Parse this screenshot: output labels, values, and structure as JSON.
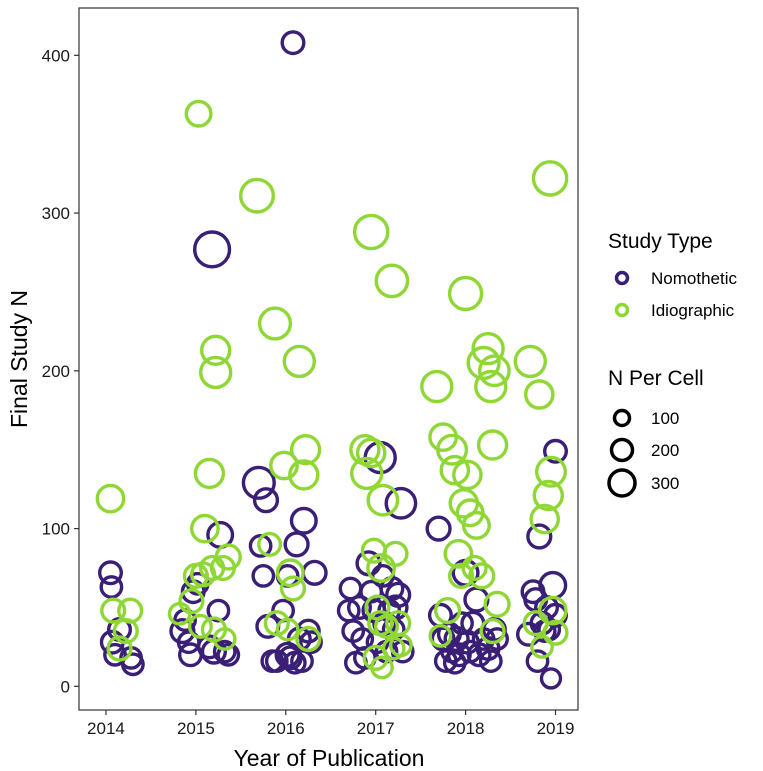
{
  "chart_data": {
    "type": "scatter",
    "title": "",
    "xlabel": "Year of Publication",
    "ylabel": "Final Study N",
    "xlim": [
      2013.7,
      2019.25
    ],
    "ylim": [
      -15,
      430
    ],
    "xticks": [
      2014,
      2015,
      2016,
      2017,
      2018,
      2019
    ],
    "yticks": [
      0,
      100,
      200,
      300,
      400
    ],
    "grid": false,
    "legend": {
      "position": "right",
      "color_title": "Study Type",
      "size_title": "N Per Cell",
      "size_labels": [
        "100",
        "200",
        "300"
      ],
      "size_values": [
        100,
        200,
        300
      ]
    },
    "series": [
      {
        "name": "Nomothetic",
        "color": "#3a1f76",
        "points": [
          {
            "x": 2014.05,
            "y": 72,
            "size": 50
          },
          {
            "x": 2014.06,
            "y": 63,
            "size": 40
          },
          {
            "x": 2014.07,
            "y": 28,
            "size": 50
          },
          {
            "x": 2014.1,
            "y": 20,
            "size": 40
          },
          {
            "x": 2014.15,
            "y": 36,
            "size": 50
          },
          {
            "x": 2014.28,
            "y": 18,
            "size": 40
          },
          {
            "x": 2014.3,
            "y": 14,
            "size": 40
          },
          {
            "x": 2014.85,
            "y": 35,
            "size": 60
          },
          {
            "x": 2014.88,
            "y": 42,
            "size": 40
          },
          {
            "x": 2014.92,
            "y": 28,
            "size": 40
          },
          {
            "x": 2014.94,
            "y": 20,
            "size": 50
          },
          {
            "x": 2014.97,
            "y": 60,
            "size": 50
          },
          {
            "x": 2015.02,
            "y": 65,
            "size": 40
          },
          {
            "x": 2015.15,
            "y": 25,
            "size": 50
          },
          {
            "x": 2015.18,
            "y": 277,
            "size": 230
          },
          {
            "x": 2015.2,
            "y": 22,
            "size": 60
          },
          {
            "x": 2015.25,
            "y": 48,
            "size": 40
          },
          {
            "x": 2015.27,
            "y": 96,
            "size": 80
          },
          {
            "x": 2015.32,
            "y": 22,
            "size": 40
          },
          {
            "x": 2015.36,
            "y": 20,
            "size": 40
          },
          {
            "x": 2015.7,
            "y": 129,
            "size": 160
          },
          {
            "x": 2015.72,
            "y": 89,
            "size": 40
          },
          {
            "x": 2015.75,
            "y": 70,
            "size": 40
          },
          {
            "x": 2015.78,
            "y": 118,
            "size": 60
          },
          {
            "x": 2015.8,
            "y": 38,
            "size": 50
          },
          {
            "x": 2015.85,
            "y": 16,
            "size": 40
          },
          {
            "x": 2015.9,
            "y": 16,
            "size": 40
          },
          {
            "x": 2015.97,
            "y": 48,
            "size": 40
          },
          {
            "x": 2016.02,
            "y": 70,
            "size": 40
          },
          {
            "x": 2016.05,
            "y": 18,
            "size": 50
          },
          {
            "x": 2016.08,
            "y": 408,
            "size": 50
          },
          {
            "x": 2016.12,
            "y": 90,
            "size": 60
          },
          {
            "x": 2016.15,
            "y": 30,
            "size": 50
          },
          {
            "x": 2016.18,
            "y": 16,
            "size": 40
          },
          {
            "x": 2016.2,
            "y": 105,
            "size": 80
          },
          {
            "x": 2016.25,
            "y": 35,
            "size": 50
          },
          {
            "x": 2016.28,
            "y": 28,
            "size": 40
          },
          {
            "x": 2016.32,
            "y": 72,
            "size": 60
          },
          {
            "x": 2016.02,
            "y": 20,
            "size": 60
          },
          {
            "x": 2016.1,
            "y": 15,
            "size": 40
          },
          {
            "x": 2016.7,
            "y": 48,
            "size": 40
          },
          {
            "x": 2016.72,
            "y": 62,
            "size": 40
          },
          {
            "x": 2016.75,
            "y": 35,
            "size": 40
          },
          {
            "x": 2016.78,
            "y": 15,
            "size": 40
          },
          {
            "x": 2016.82,
            "y": 50,
            "size": 50
          },
          {
            "x": 2016.85,
            "y": 30,
            "size": 40
          },
          {
            "x": 2016.88,
            "y": 18,
            "size": 40
          },
          {
            "x": 2016.92,
            "y": 78,
            "size": 60
          },
          {
            "x": 2016.95,
            "y": 60,
            "size": 40
          },
          {
            "x": 2016.98,
            "y": 48,
            "size": 50
          },
          {
            "x": 2017.02,
            "y": 28,
            "size": 40
          },
          {
            "x": 2017.05,
            "y": 145,
            "size": 150
          },
          {
            "x": 2017.08,
            "y": 70,
            "size": 40
          },
          {
            "x": 2017.1,
            "y": 40,
            "size": 50
          },
          {
            "x": 2017.12,
            "y": 22,
            "size": 40
          },
          {
            "x": 2017.15,
            "y": 48,
            "size": 40
          },
          {
            "x": 2017.18,
            "y": 62,
            "size": 50
          },
          {
            "x": 2017.2,
            "y": 36,
            "size": 40
          },
          {
            "x": 2017.22,
            "y": 50,
            "size": 60
          },
          {
            "x": 2017.25,
            "y": 58,
            "size": 60
          },
          {
            "x": 2017.28,
            "y": 116,
            "size": 140
          },
          {
            "x": 2017.3,
            "y": 22,
            "size": 40
          },
          {
            "x": 2017.7,
            "y": 100,
            "size": 60
          },
          {
            "x": 2017.72,
            "y": 45,
            "size": 50
          },
          {
            "x": 2017.75,
            "y": 30,
            "size": 50
          },
          {
            "x": 2017.78,
            "y": 16,
            "size": 40
          },
          {
            "x": 2017.82,
            "y": 33,
            "size": 50
          },
          {
            "x": 2017.85,
            "y": 22,
            "size": 40
          },
          {
            "x": 2017.88,
            "y": 15,
            "size": 40
          },
          {
            "x": 2017.9,
            "y": 30,
            "size": 60
          },
          {
            "x": 2017.93,
            "y": 20,
            "size": 50
          },
          {
            "x": 2017.96,
            "y": 40,
            "size": 40
          },
          {
            "x": 2018.0,
            "y": 72,
            "size": 80
          },
          {
            "x": 2018.02,
            "y": 28,
            "size": 50
          },
          {
            "x": 2018.05,
            "y": 22,
            "size": 40
          },
          {
            "x": 2018.08,
            "y": 40,
            "size": 50
          },
          {
            "x": 2018.12,
            "y": 55,
            "size": 60
          },
          {
            "x": 2018.15,
            "y": 20,
            "size": 50
          },
          {
            "x": 2018.2,
            "y": 30,
            "size": 40
          },
          {
            "x": 2018.25,
            "y": 24,
            "size": 50
          },
          {
            "x": 2018.28,
            "y": 16,
            "size": 40
          },
          {
            "x": 2018.32,
            "y": 36,
            "size": 50
          },
          {
            "x": 2018.35,
            "y": 30,
            "size": 40
          },
          {
            "x": 2018.7,
            "y": 33,
            "size": 50
          },
          {
            "x": 2018.75,
            "y": 60,
            "size": 50
          },
          {
            "x": 2018.78,
            "y": 55,
            "size": 50
          },
          {
            "x": 2018.8,
            "y": 16,
            "size": 40
          },
          {
            "x": 2018.82,
            "y": 95,
            "size": 60
          },
          {
            "x": 2018.85,
            "y": 40,
            "size": 50
          },
          {
            "x": 2018.88,
            "y": 35,
            "size": 40
          },
          {
            "x": 2018.9,
            "y": 50,
            "size": 50
          },
          {
            "x": 2018.93,
            "y": 36,
            "size": 40
          },
          {
            "x": 2018.95,
            "y": 5,
            "size": 30
          },
          {
            "x": 2018.97,
            "y": 64,
            "size": 90
          },
          {
            "x": 2019.0,
            "y": 149,
            "size": 50
          },
          {
            "x": 2019.0,
            "y": 45,
            "size": 50
          }
        ]
      },
      {
        "name": "Idiographic",
        "color": "#8fd734",
        "points": [
          {
            "x": 2014.05,
            "y": 119,
            "size": 100
          },
          {
            "x": 2014.08,
            "y": 48,
            "size": 60
          },
          {
            "x": 2014.15,
            "y": 24,
            "size": 60
          },
          {
            "x": 2014.22,
            "y": 35,
            "size": 60
          },
          {
            "x": 2014.27,
            "y": 48,
            "size": 60
          },
          {
            "x": 2014.82,
            "y": 46,
            "size": 40
          },
          {
            "x": 2014.95,
            "y": 54,
            "size": 60
          },
          {
            "x": 2015.0,
            "y": 70,
            "size": 60
          },
          {
            "x": 2015.03,
            "y": 363,
            "size": 80
          },
          {
            "x": 2015.05,
            "y": 38,
            "size": 50
          },
          {
            "x": 2015.08,
            "y": 71,
            "size": 60
          },
          {
            "x": 2015.1,
            "y": 100,
            "size": 100
          },
          {
            "x": 2015.15,
            "y": 135,
            "size": 120
          },
          {
            "x": 2015.18,
            "y": 75,
            "size": 60
          },
          {
            "x": 2015.2,
            "y": 36,
            "size": 60
          },
          {
            "x": 2015.22,
            "y": 213,
            "size": 120
          },
          {
            "x": 2015.22,
            "y": 199,
            "size": 150
          },
          {
            "x": 2015.3,
            "y": 75,
            "size": 60
          },
          {
            "x": 2015.32,
            "y": 30,
            "size": 40
          },
          {
            "x": 2015.36,
            "y": 82,
            "size": 70
          },
          {
            "x": 2015.68,
            "y": 311,
            "size": 190
          },
          {
            "x": 2015.82,
            "y": 90,
            "size": 50
          },
          {
            "x": 2015.88,
            "y": 230,
            "size": 160
          },
          {
            "x": 2015.9,
            "y": 40,
            "size": 60
          },
          {
            "x": 2015.98,
            "y": 140,
            "size": 100
          },
          {
            "x": 2016.02,
            "y": 36,
            "size": 40
          },
          {
            "x": 2016.05,
            "y": 72,
            "size": 90
          },
          {
            "x": 2016.08,
            "y": 62,
            "size": 60
          },
          {
            "x": 2016.15,
            "y": 206,
            "size": 150
          },
          {
            "x": 2016.2,
            "y": 134,
            "size": 120
          },
          {
            "x": 2016.22,
            "y": 150,
            "size": 120
          },
          {
            "x": 2016.25,
            "y": 30,
            "size": 60
          },
          {
            "x": 2016.88,
            "y": 150,
            "size": 120
          },
          {
            "x": 2016.9,
            "y": 135,
            "size": 150
          },
          {
            "x": 2016.95,
            "y": 288,
            "size": 200
          },
          {
            "x": 2016.95,
            "y": 148,
            "size": 110
          },
          {
            "x": 2016.98,
            "y": 86,
            "size": 60
          },
          {
            "x": 2017.0,
            "y": 18,
            "size": 60
          },
          {
            "x": 2017.02,
            "y": 50,
            "size": 60
          },
          {
            "x": 2017.05,
            "y": 40,
            "size": 60
          },
          {
            "x": 2017.06,
            "y": 75,
            "size": 100
          },
          {
            "x": 2017.07,
            "y": 12,
            "size": 40
          },
          {
            "x": 2017.08,
            "y": 118,
            "size": 140
          },
          {
            "x": 2017.12,
            "y": 38,
            "size": 50
          },
          {
            "x": 2017.18,
            "y": 257,
            "size": 170
          },
          {
            "x": 2017.2,
            "y": 24,
            "size": 40
          },
          {
            "x": 2017.22,
            "y": 84,
            "size": 60
          },
          {
            "x": 2017.25,
            "y": 40,
            "size": 60
          },
          {
            "x": 2017.28,
            "y": 26,
            "size": 40
          },
          {
            "x": 2017.68,
            "y": 190,
            "size": 150
          },
          {
            "x": 2017.72,
            "y": 32,
            "size": 40
          },
          {
            "x": 2017.75,
            "y": 158,
            "size": 100
          },
          {
            "x": 2017.8,
            "y": 48,
            "size": 70
          },
          {
            "x": 2017.85,
            "y": 150,
            "size": 130
          },
          {
            "x": 2017.88,
            "y": 137,
            "size": 110
          },
          {
            "x": 2017.92,
            "y": 84,
            "size": 100
          },
          {
            "x": 2017.95,
            "y": 70,
            "size": 60
          },
          {
            "x": 2017.98,
            "y": 116,
            "size": 110
          },
          {
            "x": 2018.0,
            "y": 249,
            "size": 180
          },
          {
            "x": 2018.02,
            "y": 134,
            "size": 110
          },
          {
            "x": 2018.05,
            "y": 110,
            "size": 90
          },
          {
            "x": 2018.1,
            "y": 75,
            "size": 60
          },
          {
            "x": 2018.12,
            "y": 102,
            "size": 90
          },
          {
            "x": 2018.18,
            "y": 70,
            "size": 70
          },
          {
            "x": 2018.2,
            "y": 205,
            "size": 160
          },
          {
            "x": 2018.25,
            "y": 214,
            "size": 150
          },
          {
            "x": 2018.28,
            "y": 190,
            "size": 150
          },
          {
            "x": 2018.3,
            "y": 153,
            "size": 120
          },
          {
            "x": 2018.32,
            "y": 200,
            "size": 140
          },
          {
            "x": 2018.35,
            "y": 52,
            "size": 70
          },
          {
            "x": 2018.3,
            "y": 35,
            "size": 60
          },
          {
            "x": 2018.72,
            "y": 206,
            "size": 150
          },
          {
            "x": 2018.78,
            "y": 40,
            "size": 60
          },
          {
            "x": 2018.82,
            "y": 185,
            "size": 110
          },
          {
            "x": 2018.85,
            "y": 25,
            "size": 40
          },
          {
            "x": 2018.88,
            "y": 106,
            "size": 110
          },
          {
            "x": 2018.92,
            "y": 121,
            "size": 120
          },
          {
            "x": 2018.94,
            "y": 322,
            "size": 200
          },
          {
            "x": 2018.95,
            "y": 136,
            "size": 130
          },
          {
            "x": 2018.97,
            "y": 48,
            "size": 100
          },
          {
            "x": 2019.0,
            "y": 34,
            "size": 60
          }
        ]
      }
    ]
  }
}
